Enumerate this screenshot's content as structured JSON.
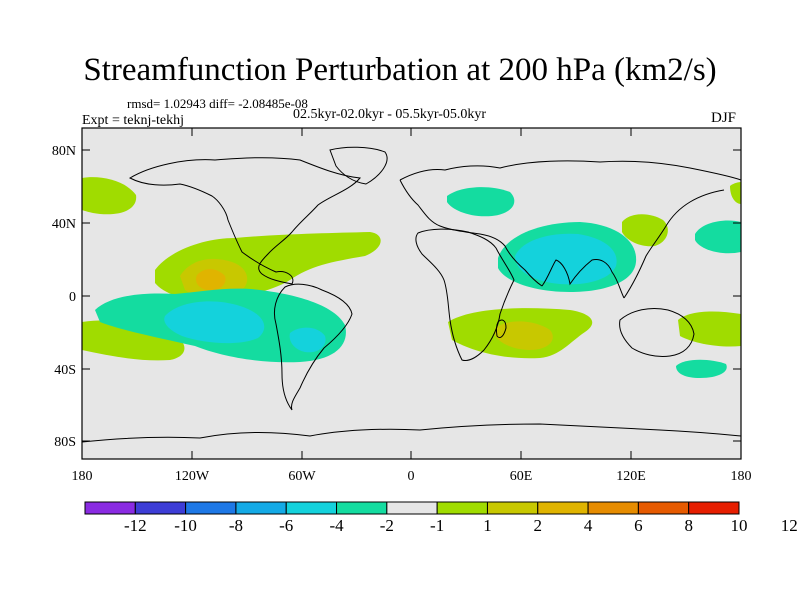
{
  "title": "Streamfunction Perturbation at 200 hPa (km2/s)",
  "stats_text": "rmsd= 1.02943 diff= -2.08485e-08",
  "period_text": "02.5kyr-02.0kyr - 05.5kyr-05.0kyr",
  "experiment_text": "Expt = teknj-tekhj",
  "season": "DJF",
  "axes": {
    "lat_labels": [
      "80N",
      "40N",
      "0",
      "40S",
      "80S"
    ],
    "lon_labels": [
      "180",
      "120W",
      "60W",
      "0",
      "60E",
      "120E",
      "180"
    ]
  },
  "colorbar": {
    "colors": [
      "#8a2be2",
      "#3d3dd6",
      "#1e78e6",
      "#14aae6",
      "#14d2dc",
      "#14dca0",
      "#e6e6e6",
      "#a0dc00",
      "#c8c800",
      "#e0b400",
      "#e68c00",
      "#e65a00",
      "#e61e00"
    ],
    "labels": [
      "-12",
      "-10",
      "-8",
      "-6",
      "-4",
      "-2",
      "-1",
      "1",
      "2",
      "4",
      "6",
      "8",
      "10",
      "12"
    ]
  },
  "colors": {
    "background": "#e6e6e6",
    "positive_light": "#a0dc00",
    "positive_mid": "#c8c800",
    "positive_high": "#e0b400",
    "negative_light": "#14dca0",
    "negative_mid": "#14d2dc",
    "negative_high": "#14aae6"
  }
}
